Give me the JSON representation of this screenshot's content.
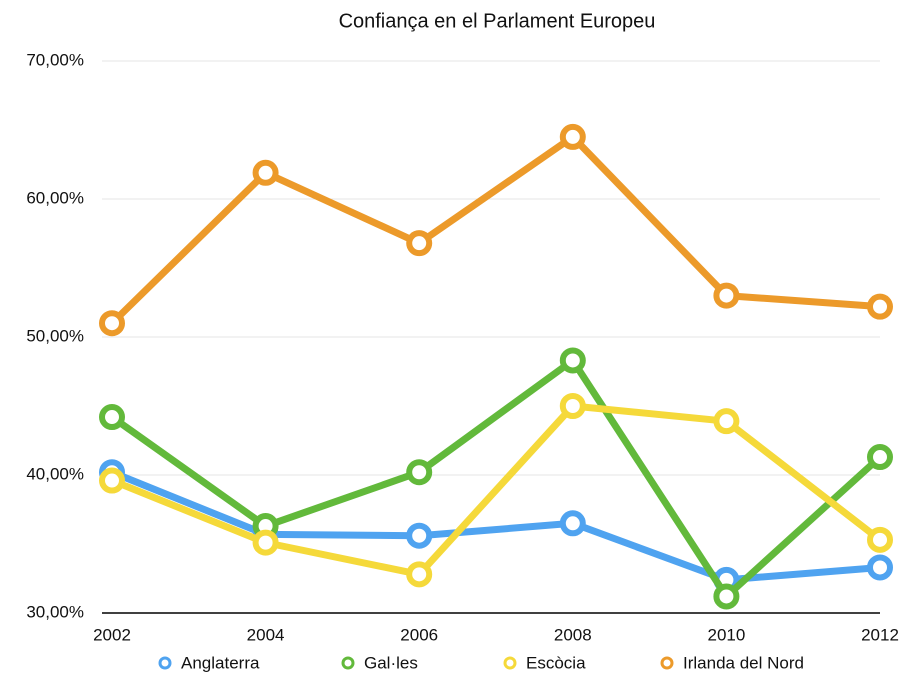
{
  "chart_data": {
    "type": "line",
    "title": "Confiança en el Parlament Europeu",
    "x": [
      2002,
      2004,
      2006,
      2008,
      2010,
      2012
    ],
    "xlim": [
      2002,
      2012
    ],
    "xticks": [
      2002,
      2004,
      2006,
      2008,
      2010,
      2012
    ],
    "ylim": [
      30,
      70
    ],
    "yticks": [
      {
        "value": 30,
        "label": "30,00%"
      },
      {
        "value": 40,
        "label": "40,00%"
      },
      {
        "value": 50,
        "label": "50,00%"
      },
      {
        "value": 60,
        "label": "60,00%"
      },
      {
        "value": 70,
        "label": "70,00%"
      }
    ],
    "grid": true,
    "legend": "bottom",
    "series": [
      {
        "name": "Anglaterra",
        "color": "#4fa3f0",
        "values": [
          40.2,
          35.7,
          35.6,
          36.5,
          32.4,
          33.3
        ]
      },
      {
        "name": "Gal·les",
        "color": "#62b93b",
        "values": [
          44.2,
          36.3,
          40.2,
          48.3,
          31.2,
          41.3
        ]
      },
      {
        "name": "Escòcia",
        "color": "#f5d93a",
        "values": [
          39.6,
          35.1,
          32.8,
          45.0,
          43.9,
          35.3
        ]
      },
      {
        "name": "Irlanda del Nord",
        "color": "#ec9a2a",
        "values": [
          51.0,
          61.9,
          56.8,
          64.5,
          53.0,
          52.2
        ]
      }
    ]
  }
}
